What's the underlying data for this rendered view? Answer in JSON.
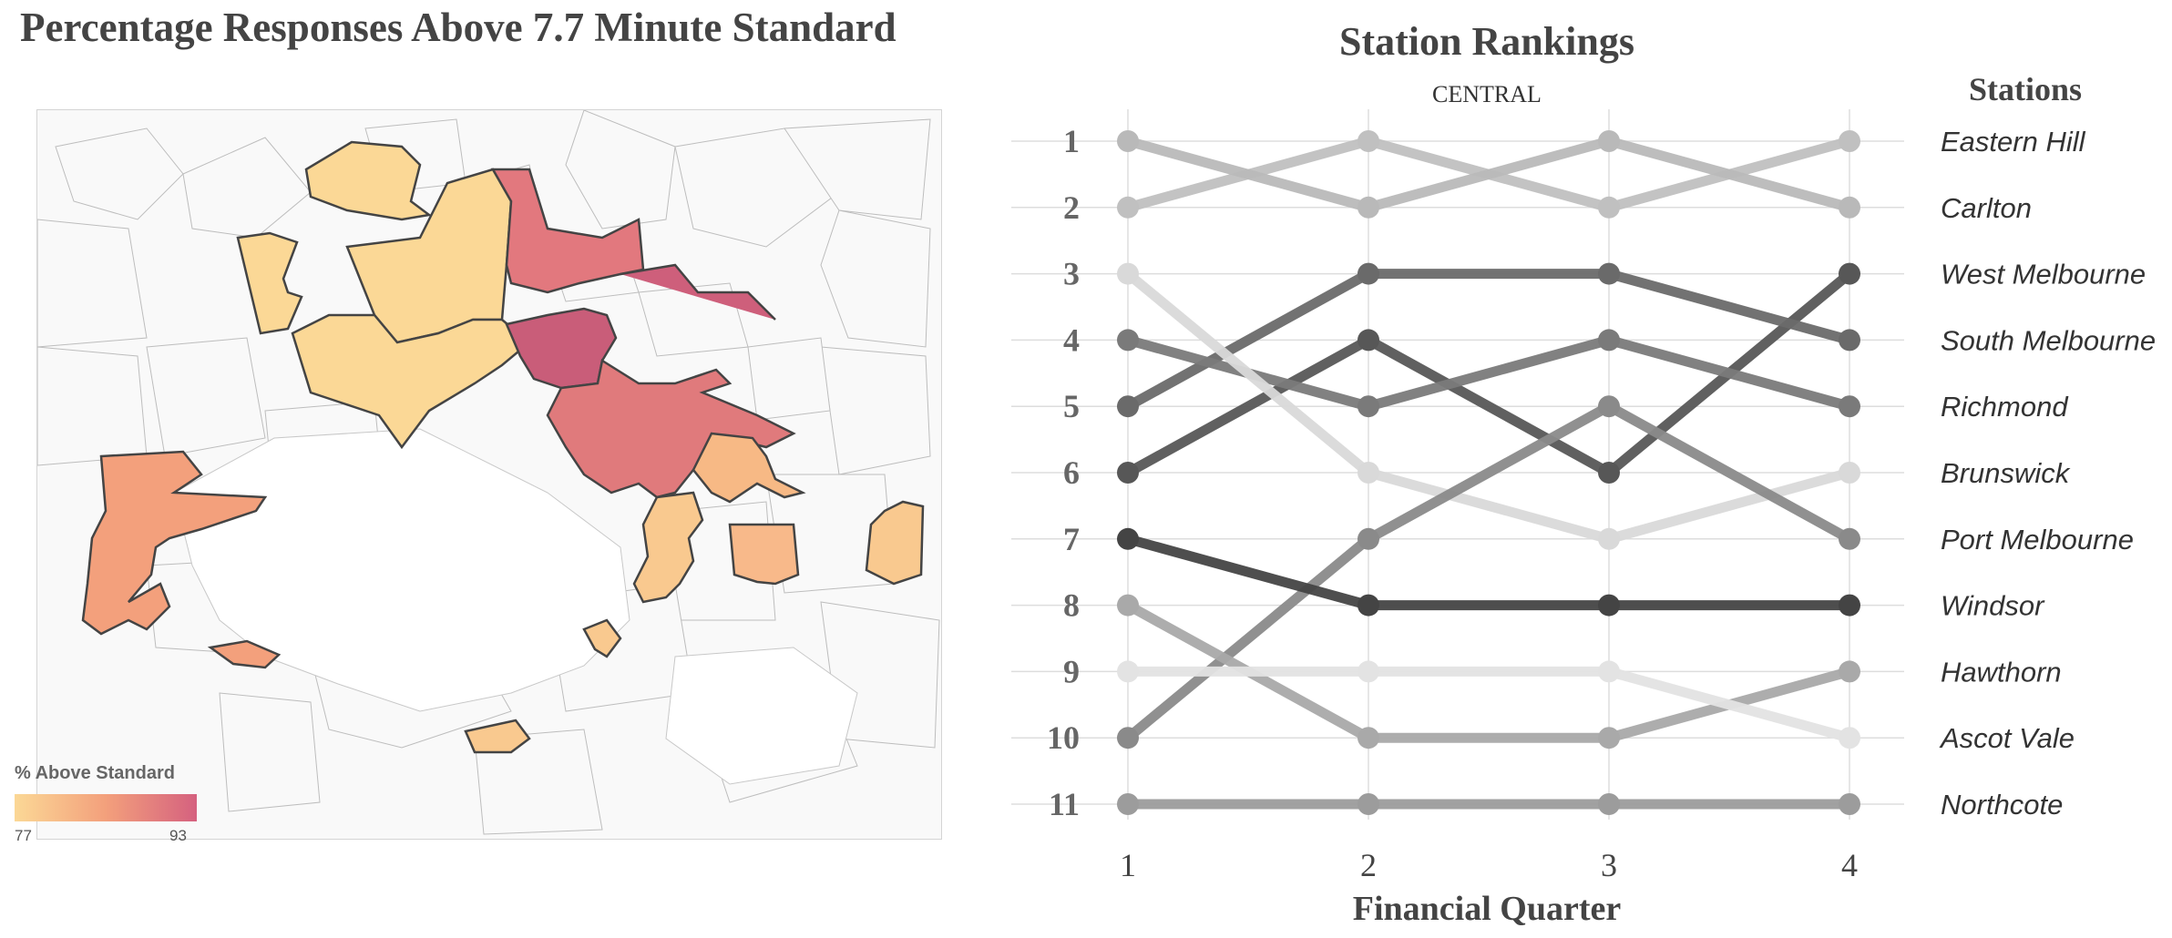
{
  "map": {
    "title": "Percentage Responses Above 7.7 Minute Standard",
    "legend_title": "% Above Standard",
    "legend_min": "77",
    "legend_max": "93",
    "colors": {
      "low": "#fbd896",
      "mid": "#f3a07c",
      "high": "#d5617f",
      "base": "#f9f9f9",
      "border": "#bdbdbd"
    }
  },
  "chart_data": {
    "type": "line",
    "title": "Station Rankings",
    "subtitle": "CENTRAL",
    "xlabel": "Financial Quarter",
    "ylabel": "",
    "legend_title": "Stations",
    "x": [
      1,
      2,
      3,
      4
    ],
    "y_ticks": [
      1,
      2,
      3,
      4,
      5,
      6,
      7,
      8,
      9,
      10,
      11
    ],
    "ylim": [
      11,
      1
    ],
    "y_reversed": true,
    "grid": true,
    "series": [
      {
        "name": "Eastern Hill",
        "values": [
          2,
          1,
          2,
          1
        ],
        "color": "#c0c0c0"
      },
      {
        "name": "Carlton",
        "values": [
          1,
          2,
          1,
          2
        ],
        "color": "#b9b9b9"
      },
      {
        "name": "West Melbourne",
        "values": [
          6,
          4,
          6,
          3
        ],
        "color": "#575757"
      },
      {
        "name": "South Melbourne",
        "values": [
          5,
          3,
          3,
          4
        ],
        "color": "#6a6a6a"
      },
      {
        "name": "Richmond",
        "values": [
          4,
          5,
          4,
          5
        ],
        "color": "#7a7a7a"
      },
      {
        "name": "Brunswick",
        "values": [
          3,
          6,
          7,
          6
        ],
        "color": "#d9d9d9"
      },
      {
        "name": "Port Melbourne",
        "values": [
          10,
          7,
          5,
          7
        ],
        "color": "#8a8a8a"
      },
      {
        "name": "Windsor",
        "values": [
          7,
          8,
          8,
          8
        ],
        "color": "#444444"
      },
      {
        "name": "Hawthorn",
        "values": [
          8,
          10,
          10,
          9
        ],
        "color": "#a9a9a9"
      },
      {
        "name": "Ascot Vale",
        "values": [
          9,
          9,
          9,
          10
        ],
        "color": "#e3e3e3"
      },
      {
        "name": "Northcote",
        "values": [
          11,
          11,
          11,
          11
        ],
        "color": "#9c9c9c"
      }
    ]
  }
}
